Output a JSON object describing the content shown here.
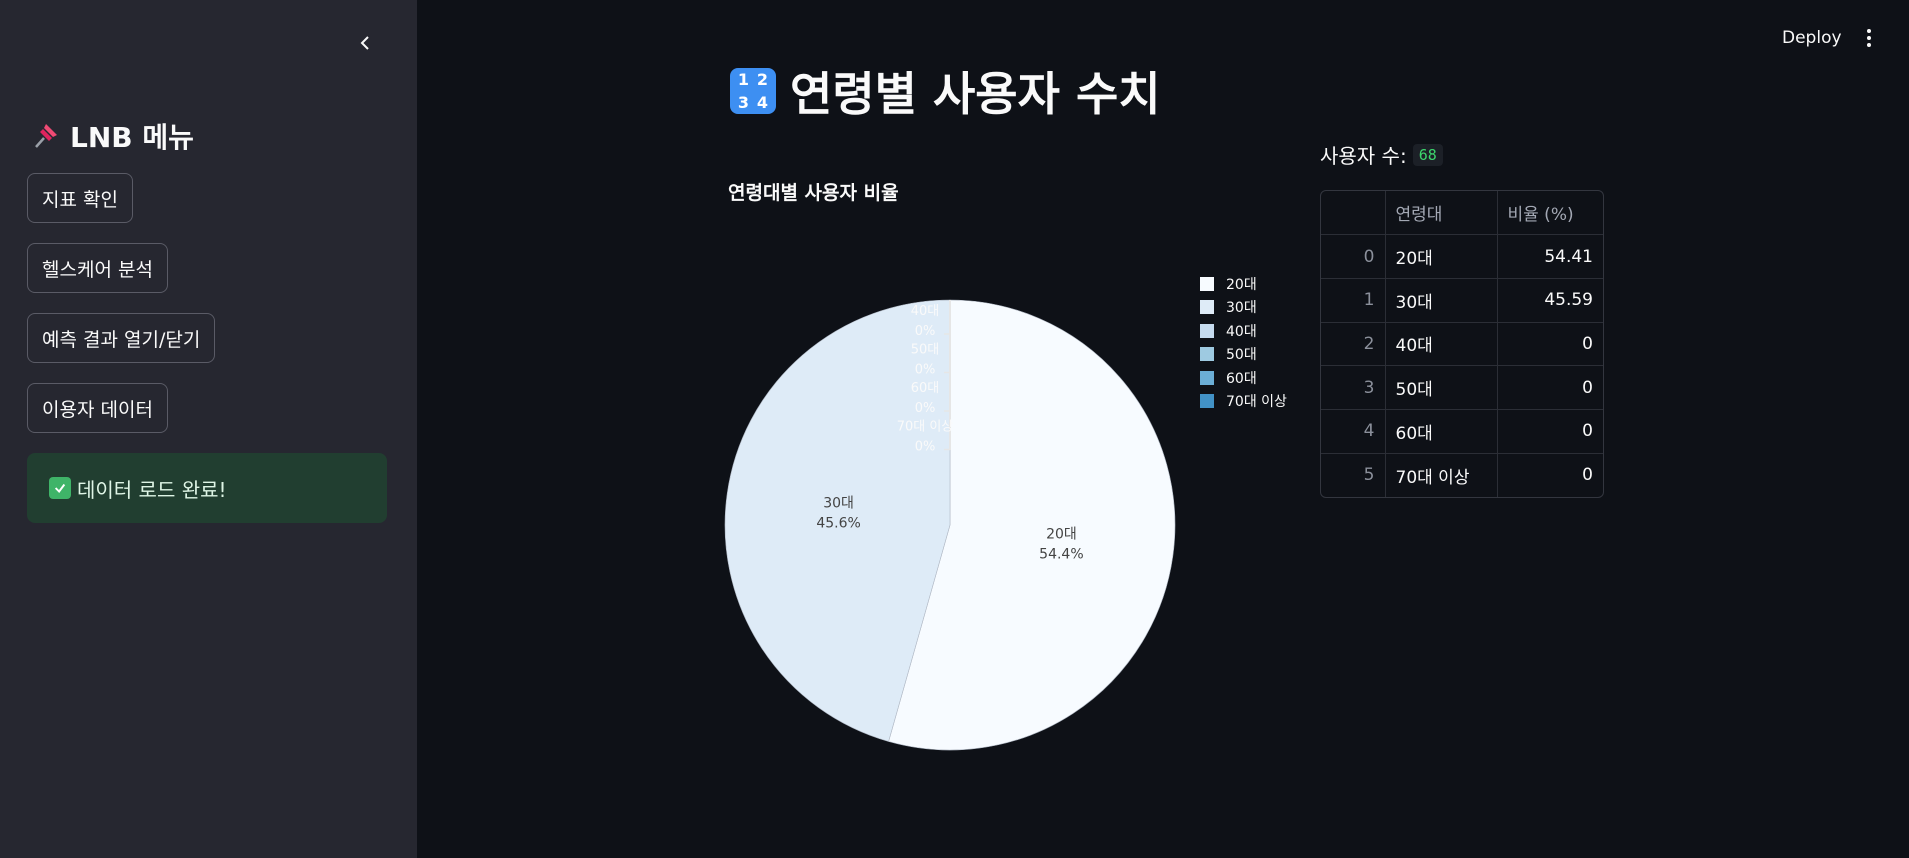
{
  "sidebar": {
    "title": "LNB 메뉴",
    "buttons": [
      "지표 확인",
      "헬스케어 분석",
      "예측 결과 열기/닫기",
      "이용자 데이터"
    ],
    "success_message": "데이터 로드 완료!"
  },
  "header": {
    "deploy_label": "Deploy"
  },
  "main": {
    "title": "연령별 사용자 수치",
    "user_count_label": "사용자 수:",
    "user_count": "68",
    "table": {
      "headers": [
        "",
        "연령대",
        "비율 (%)"
      ],
      "rows": [
        [
          "0",
          "20대",
          "54.41"
        ],
        [
          "1",
          "30대",
          "45.59"
        ],
        [
          "2",
          "40대",
          "0"
        ],
        [
          "3",
          "50대",
          "0"
        ],
        [
          "4",
          "60대",
          "0"
        ],
        [
          "5",
          "70대 이상",
          "0"
        ]
      ]
    }
  },
  "chart_data": {
    "type": "pie",
    "title": "연령대별 사용자 비율",
    "categories": [
      "20대",
      "30대",
      "40대",
      "50대",
      "60대",
      "70대 이상"
    ],
    "values": [
      54.4,
      45.6,
      0,
      0,
      0,
      0
    ],
    "labels": [
      "54.4%",
      "45.6%",
      "0%",
      "0%",
      "0%",
      "0%"
    ],
    "colors": [
      "#f7fbff",
      "#deebf7",
      "#c6dbef",
      "#9ecae1",
      "#6baed6",
      "#4292c6"
    ],
    "legend": "right"
  }
}
